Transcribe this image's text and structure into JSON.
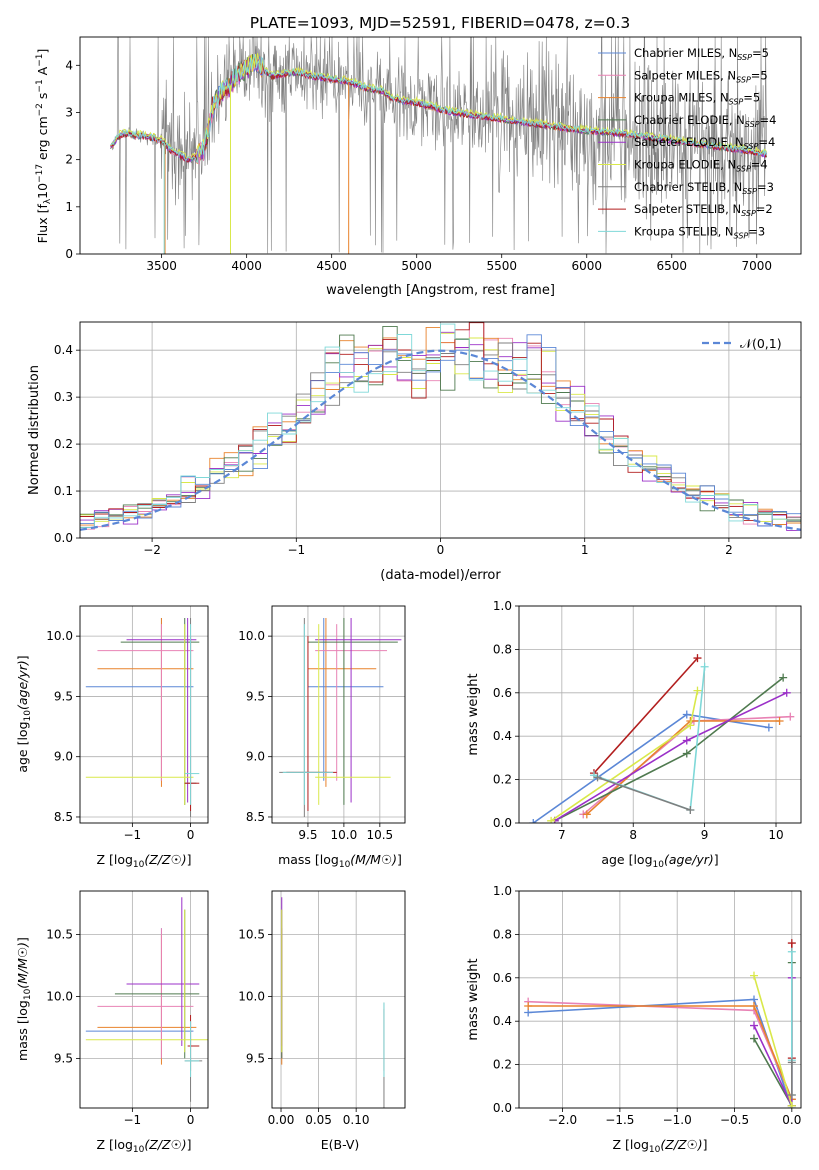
{
  "figure_title": "PLATE=1093, MJD=52591, FIBERID=0478, z=0.3",
  "colors": {
    "blue": "#5b87d6",
    "pink": "#e882b4",
    "orange": "#e8822c",
    "dkgreen": "#4f7a4f",
    "purple": "#9b30c8",
    "yellow": "#d9e84a",
    "gray": "#7f7f7f",
    "red": "#b21e1e",
    "cyan": "#7fd8d8"
  },
  "chart_data": [
    {
      "id": "spectrum",
      "type": "line",
      "xlabel": "wavelength [Angstrom, rest frame]",
      "ylabel": "Flux [f_λ 10^-17 erg cm^-2 s^-1 A^-1]",
      "xlim": [
        3020,
        7260
      ],
      "ylim": [
        0,
        4.6
      ],
      "xticks": [
        3500,
        4000,
        4500,
        5000,
        5500,
        6000,
        6500,
        7000
      ],
      "yticks": [
        0,
        1,
        2,
        3,
        4
      ],
      "legend_position": "upper right",
      "series": [
        {
          "name": "Chabrier MILES, N_SSP=5",
          "color": "blue"
        },
        {
          "name": "Salpeter MILES, N_SSP=5",
          "color": "pink"
        },
        {
          "name": "Kroupa MILES, N_SSP=5",
          "color": "orange"
        },
        {
          "name": "Chabrier ELODIE, N_SSP=4",
          "color": "dkgreen"
        },
        {
          "name": "Salpeter ELODIE, N_SSP=4",
          "color": "purple"
        },
        {
          "name": "Kroupa ELODIE, N_SSP=4",
          "color": "yellow"
        },
        {
          "name": "Chabrier STELIB, N_SSP=3",
          "color": "gray"
        },
        {
          "name": "Salpeter STELIB, N_SSP=2",
          "color": "red"
        },
        {
          "name": "Kroupa STELIB, N_SSP=3",
          "color": "cyan"
        }
      ],
      "model_continuum": {
        "x": [
          3200,
          3250,
          3300,
          3350,
          3400,
          3450,
          3500,
          3550,
          3600,
          3650,
          3700,
          3750,
          3800,
          3850,
          3900,
          3950,
          4000,
          4050,
          4100,
          4150,
          4200,
          4300,
          4400,
          4500,
          4600,
          4700,
          4800,
          4850,
          4900,
          5000,
          5200,
          5400,
          5600,
          5800,
          6000,
          6200,
          6400,
          6600,
          6800,
          7000,
          7060
        ],
        "y": [
          2.25,
          2.5,
          2.55,
          2.5,
          2.5,
          2.45,
          2.4,
          2.2,
          2.1,
          2.0,
          2.05,
          2.2,
          3.1,
          3.4,
          3.55,
          3.8,
          3.95,
          4.05,
          3.9,
          3.75,
          3.8,
          3.85,
          3.75,
          3.7,
          3.65,
          3.5,
          3.45,
          3.3,
          3.25,
          3.2,
          3.0,
          2.9,
          2.8,
          2.7,
          2.6,
          2.55,
          2.45,
          2.35,
          2.25,
          2.15,
          2.1
        ]
      }
    },
    {
      "id": "residuals",
      "type": "line",
      "xlabel": "(data-model)/error",
      "ylabel": "Normed distribution",
      "xlim": [
        -2.5,
        2.5
      ],
      "ylim": [
        0,
        0.46
      ],
      "xticks": [
        -2,
        -1,
        0,
        1,
        2
      ],
      "yticks": [
        0.0,
        0.1,
        0.2,
        0.3,
        0.4
      ],
      "legend": "𝒩(0,1)",
      "legend_position": "upper right",
      "gaussian": {
        "mean": 0,
        "sigma": 1,
        "color": "blue"
      },
      "histogram_bin_width": 0.1
    },
    {
      "id": "age_vs_Z",
      "type": "scatter",
      "xlabel": "Z [log10(Z/Z☉)]",
      "ylabel": "age  [log10(age/yr)]",
      "xlim": [
        -1.9,
        0.3
      ],
      "ylim": [
        8.45,
        10.25
      ],
      "xticks": [
        -1,
        0
      ],
      "yticks": [
        8.5,
        9.0,
        9.5,
        10.0
      ],
      "points": [
        {
          "c": "blue",
          "x": -0.5,
          "y": 9.58,
          "xe": [
            -1.8,
            0.05
          ],
          "ye": [
            8.8,
            10.15
          ]
        },
        {
          "c": "orange",
          "x": -0.5,
          "y": 9.73,
          "xe": [
            -1.6,
            0.05
          ],
          "ye": [
            8.75,
            10.15
          ]
        },
        {
          "c": "pink",
          "x": -0.5,
          "y": 9.88,
          "xe": [
            -1.6,
            0.05
          ],
          "ye": [
            8.8,
            10.1
          ]
        },
        {
          "c": "dkgreen",
          "x": -0.1,
          "y": 9.95,
          "xe": [
            -1.2,
            0.15
          ],
          "ye": [
            8.6,
            10.15
          ]
        },
        {
          "c": "purple",
          "x": -0.05,
          "y": 9.97,
          "xe": [
            -1.1,
            0.1
          ],
          "ye": [
            8.62,
            10.15
          ]
        },
        {
          "c": "yellow",
          "x": -0.1,
          "y": 8.83,
          "xe": [
            -1.8,
            0.05
          ],
          "ye": [
            8.6,
            10.1
          ]
        },
        {
          "c": "gray",
          "x": 0.0,
          "y": 8.78,
          "xe": [
            -0.1,
            0.1
          ],
          "ye": [
            8.5,
            10.15
          ]
        },
        {
          "c": "red",
          "x": 0.0,
          "y": 8.78,
          "xe": [
            -0.1,
            0.15
          ],
          "ye": [
            8.55,
            10.0
          ]
        },
        {
          "c": "cyan",
          "x": 0.0,
          "y": 8.86,
          "xe": [
            -0.1,
            0.15
          ],
          "ye": [
            8.6,
            10.1
          ]
        }
      ]
    },
    {
      "id": "age_vs_mass",
      "type": "scatter",
      "xlabel": "mass [log10(M/M☉)]",
      "ylabel": "",
      "xlim": [
        9.0,
        10.85
      ],
      "ylim": [
        8.45,
        10.25
      ],
      "xticks": [
        9.5,
        10.0,
        10.5
      ],
      "yticks": [
        8.5,
        9.0,
        9.5,
        10.0
      ],
      "points": [
        {
          "c": "blue",
          "x": 9.72,
          "y": 9.58,
          "xe": [
            9.5,
            10.55
          ],
          "ye": [
            8.8,
            10.15
          ]
        },
        {
          "c": "orange",
          "x": 9.75,
          "y": 9.73,
          "xe": [
            9.5,
            10.45
          ],
          "ye": [
            8.75,
            10.15
          ]
        },
        {
          "c": "pink",
          "x": 9.9,
          "y": 9.88,
          "xe": [
            9.6,
            10.6
          ],
          "ye": [
            8.8,
            10.1
          ]
        },
        {
          "c": "dkgreen",
          "x": 10.0,
          "y": 9.95,
          "xe": [
            9.5,
            10.75
          ],
          "ye": [
            8.6,
            10.15
          ]
        },
        {
          "c": "purple",
          "x": 10.1,
          "y": 9.97,
          "xe": [
            9.6,
            10.8
          ],
          "ye": [
            8.62,
            10.15
          ]
        },
        {
          "c": "yellow",
          "x": 9.65,
          "y": 8.83,
          "xe": [
            9.6,
            10.65
          ],
          "ye": [
            8.6,
            10.1
          ]
        },
        {
          "c": "gray",
          "x": 9.45,
          "y": 8.87,
          "xe": [
            9.1,
            9.8
          ],
          "ye": [
            8.5,
            10.15
          ]
        },
        {
          "c": "red",
          "x": 9.5,
          "y": 8.87,
          "xe": [
            9.2,
            9.9
          ],
          "ye": [
            8.55,
            10.0
          ]
        },
        {
          "c": "cyan",
          "x": 9.45,
          "y": 8.87,
          "xe": [
            9.15,
            9.85
          ],
          "ye": [
            8.6,
            10.1
          ]
        }
      ]
    },
    {
      "id": "weight_vs_age",
      "type": "line",
      "xlabel": "age  [log10(age/yr)]",
      "ylabel": "mass weight",
      "xlim": [
        6.4,
        10.35
      ],
      "ylim": [
        0,
        1.0
      ],
      "xticks": [
        7,
        8,
        9,
        10
      ],
      "yticks": [
        0.0,
        0.2,
        0.4,
        0.6,
        0.8,
        1.0
      ],
      "series": [
        {
          "c": "blue",
          "x": [
            6.6,
            8.75,
            9.9
          ],
          "y": [
            0.0,
            0.5,
            0.44
          ]
        },
        {
          "c": "pink",
          "x": [
            7.3,
            8.85,
            10.2
          ],
          "y": [
            0.04,
            0.47,
            0.49
          ]
        },
        {
          "c": "orange",
          "x": [
            7.35,
            8.8,
            10.05
          ],
          "y": [
            0.04,
            0.47,
            0.47
          ]
        },
        {
          "c": "dkgreen",
          "x": [
            6.9,
            8.75,
            10.1
          ],
          "y": [
            0.01,
            0.32,
            0.67
          ]
        },
        {
          "c": "purple",
          "x": [
            6.9,
            8.75,
            10.15
          ],
          "y": [
            0.01,
            0.38,
            0.6
          ]
        },
        {
          "c": "yellow",
          "x": [
            6.85,
            8.8,
            8.9
          ],
          "y": [
            0.01,
            0.45,
            0.61
          ]
        },
        {
          "c": "red",
          "x": [
            7.45,
            8.9
          ],
          "y": [
            0.23,
            0.76
          ]
        },
        {
          "c": "cyan",
          "x": [
            7.45,
            8.8,
            9.0
          ],
          "y": [
            0.22,
            0.06,
            0.72
          ]
        },
        {
          "c": "gray",
          "x": [
            7.5,
            8.8
          ],
          "y": [
            0.21,
            0.06
          ]
        }
      ]
    },
    {
      "id": "mass_vs_Z",
      "type": "scatter",
      "xlabel": "Z [log10(Z/Z☉)]",
      "ylabel": "mass [log10(M/M☉)]",
      "xlim": [
        -1.9,
        0.3
      ],
      "ylim": [
        9.1,
        10.85
      ],
      "xticks": [
        -1,
        0
      ],
      "yticks": [
        9.5,
        10.0,
        10.5
      ],
      "points": [
        {
          "c": "blue",
          "x": -0.5,
          "y": 9.72,
          "xe": [
            -1.8,
            0.05
          ],
          "ye": [
            9.5,
            10.55
          ]
        },
        {
          "c": "orange",
          "x": -0.5,
          "y": 9.75,
          "xe": [
            -1.6,
            0.1
          ],
          "ye": [
            9.45,
            10.5
          ]
        },
        {
          "c": "pink",
          "x": -0.5,
          "y": 9.92,
          "xe": [
            -1.6,
            0.05
          ],
          "ye": [
            9.5,
            10.55
          ]
        },
        {
          "c": "dkgreen",
          "x": -0.1,
          "y": 10.02,
          "xe": [
            -1.3,
            0.15
          ],
          "ye": [
            9.5,
            10.7
          ]
        },
        {
          "c": "purple",
          "x": -0.15,
          "y": 10.1,
          "xe": [
            -1.1,
            0.15
          ],
          "ye": [
            9.6,
            10.8
          ]
        },
        {
          "c": "yellow",
          "x": -0.1,
          "y": 9.65,
          "xe": [
            -1.8,
            0.3
          ],
          "ye": [
            9.55,
            10.7
          ]
        },
        {
          "c": "gray",
          "x": 0.0,
          "y": 9.48,
          "xe": [
            -0.1,
            0.2
          ],
          "ye": [
            9.15,
            9.8
          ]
        },
        {
          "c": "red",
          "x": 0.0,
          "y": 9.6,
          "xe": [
            -0.05,
            0.15
          ],
          "ye": [
            9.4,
            9.85
          ]
        },
        {
          "c": "cyan",
          "x": 0.0,
          "y": 9.48,
          "xe": [
            -0.1,
            0.15
          ],
          "ye": [
            9.35,
            9.8
          ]
        }
      ]
    },
    {
      "id": "mass_vs_ebv",
      "type": "scatter",
      "xlabel": "E(B-V)",
      "ylabel": "",
      "xlim": [
        -0.012,
        0.165
      ],
      "ylim": [
        9.1,
        10.85
      ],
      "xticks": [
        0.0,
        0.05,
        0.1
      ],
      "yticks": [
        9.5,
        10.0,
        10.5
      ],
      "points": [
        {
          "c": "blue",
          "x": 0.001,
          "y": 10.0,
          "ye": [
            9.5,
            10.55
          ]
        },
        {
          "c": "orange",
          "x": 0.001,
          "y": 9.95,
          "ye": [
            9.45,
            10.5
          ]
        },
        {
          "c": "pink",
          "x": 0.001,
          "y": 10.05,
          "ye": [
            9.5,
            10.55
          ]
        },
        {
          "c": "dkgreen",
          "x": 0.001,
          "y": 10.05,
          "ye": [
            9.5,
            10.7
          ]
        },
        {
          "c": "purple",
          "x": 0.001,
          "y": 10.2,
          "ye": [
            9.6,
            10.8
          ]
        },
        {
          "c": "yellow",
          "x": 0.001,
          "y": 10.1,
          "ye": [
            9.55,
            10.7
          ]
        },
        {
          "c": "gray",
          "x": 0.137,
          "y": 9.5,
          "ye": [
            9.1,
            9.95
          ]
        },
        {
          "c": "red",
          "x": 0.137,
          "y": 9.6,
          "ye": [
            9.4,
            9.9
          ]
        },
        {
          "c": "cyan",
          "x": 0.137,
          "y": 9.6,
          "ye": [
            9.35,
            9.95
          ]
        }
      ]
    },
    {
      "id": "weight_vs_Z",
      "type": "line",
      "xlabel": "Z [log10(Z/Z☉)]",
      "ylabel": "mass weight",
      "xlim": [
        -2.38,
        0.08
      ],
      "ylim": [
        0,
        1.0
      ],
      "xticks": [
        -2.0,
        -1.5,
        -1.0,
        -0.5,
        0.0
      ],
      "yticks": [
        0.0,
        0.2,
        0.4,
        0.6,
        0.8,
        1.0
      ],
      "series": [
        {
          "c": "blue",
          "x": [
            -2.3,
            -0.33,
            0.0
          ],
          "y": [
            0.44,
            0.5,
            0.0
          ]
        },
        {
          "c": "pink",
          "x": [
            -2.3,
            -0.33,
            0.0
          ],
          "y": [
            0.49,
            0.45,
            0.04
          ]
        },
        {
          "c": "orange",
          "x": [
            -2.3,
            -0.33,
            0.0
          ],
          "y": [
            0.47,
            0.47,
            0.04
          ]
        },
        {
          "c": "dkgreen",
          "x": [
            -0.33,
            0.0,
            0.0
          ],
          "y": [
            0.32,
            0.01,
            0.67
          ]
        },
        {
          "c": "purple",
          "x": [
            -0.33,
            0.0,
            0.0
          ],
          "y": [
            0.38,
            0.01,
            0.6
          ]
        },
        {
          "c": "yellow",
          "x": [
            -0.33,
            0.0
          ],
          "y": [
            0.61,
            0.01
          ]
        },
        {
          "c": "red",
          "x": [
            0.0,
            0.0
          ],
          "y": [
            0.23,
            0.76
          ]
        },
        {
          "c": "cyan",
          "x": [
            0.0,
            0.0,
            0.0
          ],
          "y": [
            0.06,
            0.22,
            0.72
          ]
        },
        {
          "c": "gray",
          "x": [
            0.0,
            0.0
          ],
          "y": [
            0.06,
            0.21
          ]
        }
      ]
    }
  ]
}
